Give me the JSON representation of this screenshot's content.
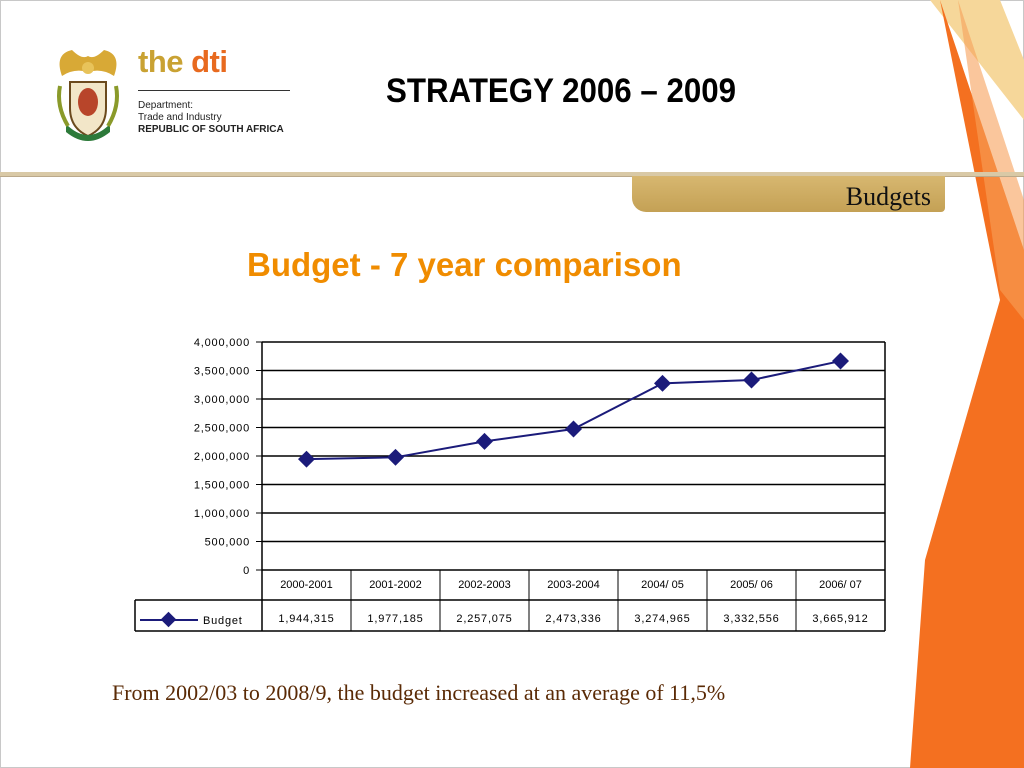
{
  "header": {
    "title": "STRATEGY 2006 – 2009",
    "section_tab": "Budgets",
    "logo": {
      "brand_the": "the",
      "brand_dti": "dti",
      "dept_line1": "Department:",
      "dept_line2": "Trade and Industry",
      "dept_line3": "REPUBLIC OF SOUTH AFRICA"
    }
  },
  "colors": {
    "title_orange": "#f08c00",
    "series_navy": "#1b1b7a",
    "footnote_brown": "#5a2a05",
    "stripe_orange": "#f47020",
    "stripe_gold": "#f1c46a"
  },
  "chart_data": {
    "type": "line",
    "title": "Budget - 7 year comparison",
    "categories": [
      "2000-2001",
      "2001-2002",
      "2002-2003",
      "2003-2004",
      "2004/ 05",
      "2005/ 06",
      "2006/ 07"
    ],
    "series": [
      {
        "name": "Budget",
        "values": [
          1944315,
          1977185,
          2257075,
          2473336,
          3274965,
          3332556,
          3665912
        ],
        "labels": [
          "1,944,315",
          "1,977,185",
          "2,257,075",
          "2,473,336",
          "3,274,965",
          "3,332,556",
          "3,665,912"
        ]
      }
    ],
    "ylim": [
      0,
      4000000
    ],
    "yticks": [
      0,
      500000,
      1000000,
      1500000,
      2000000,
      2500000,
      3000000,
      3500000,
      4000000
    ],
    "ytick_labels": [
      "0",
      "500,000",
      "1,000,000",
      "1,500,000",
      "2,000,000",
      "2,500,000",
      "3,000,000",
      "3,500,000",
      "4,000,000"
    ],
    "xlabel": "",
    "ylabel": "",
    "grid": "horizontal",
    "legend": "data-table"
  },
  "footnote": "From 2002/03 to 2008/9, the budget increased at an average of 11,5%"
}
